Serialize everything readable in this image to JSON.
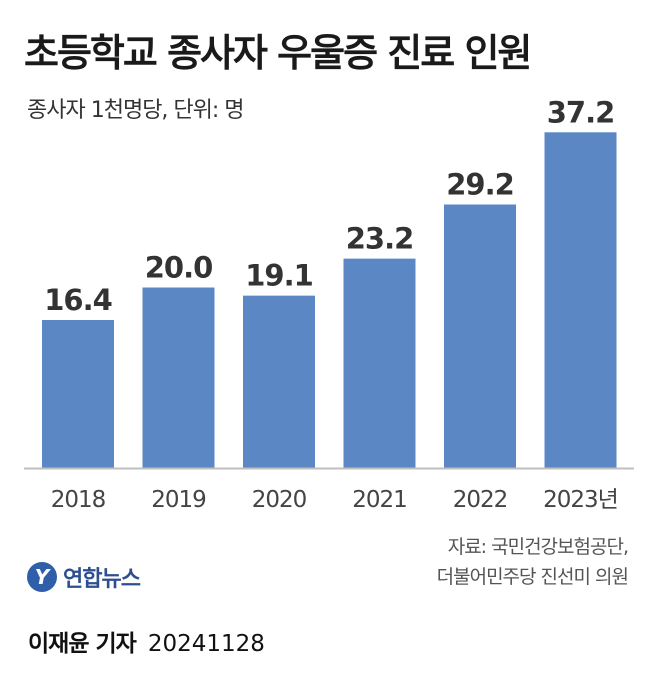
{
  "header": {
    "title": "초등학교 종사자 우울증 진료 인원",
    "subtitle": "종사자 1천명당, 단위: 명"
  },
  "chart_data": {
    "type": "bar",
    "categories": [
      "2018",
      "2019",
      "2020",
      "2021",
      "2022",
      "2023년"
    ],
    "values": [
      16.4,
      20.0,
      19.1,
      23.2,
      29.2,
      37.2
    ],
    "value_labels": [
      "16.4",
      "20.0",
      "19.1",
      "23.2",
      "29.2",
      "37.2"
    ],
    "title": "초등학교 종사자 우울증 진료 인원",
    "subtitle": "종사자 1천명당, 단위: 명",
    "ylim": [
      0,
      41
    ],
    "grid": false,
    "bar_color": "#5b87c5",
    "axis_color": "#bfbfbf"
  },
  "source": {
    "line1": "자료: 국민건강보험공단,",
    "line2": "더불어민주당 진선미 의원"
  },
  "logo": {
    "mark": "Y",
    "text": "연합뉴스"
  },
  "footer": {
    "reporter": "이재윤 기자",
    "date": "20241128"
  }
}
